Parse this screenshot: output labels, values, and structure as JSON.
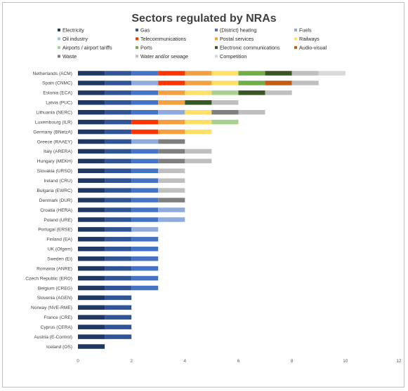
{
  "chart_data": {
    "type": "bar",
    "orientation": "horizontal",
    "stacked": true,
    "title": "Sectors regulated by NRAs",
    "xlabel": "",
    "ylabel": "",
    "xlim": [
      0,
      12
    ],
    "x_ticks": [
      "0",
      "2",
      "4",
      "6",
      "8",
      "10",
      "12"
    ],
    "grid": false,
    "legend_position": "top",
    "categories": [
      "Netherlands (ACM)",
      "Spain (CNMC)",
      "Estonia (ECA)",
      "Latvia (PUC)",
      "Lithuania (NERC)",
      "Luxembourg (ILR)",
      "Germany (BNetzA)",
      "Greece (RAAEY)",
      "Italy (ARERA)",
      "Hungary (MEKH)",
      "Slovakia (URSO)",
      "Ireland (CRU)",
      "Bulgaria (EWRC)",
      "Denmark (DUR)",
      "Croatia (HERA)",
      "Poland (URE)",
      "Portugal (ERSE)",
      "Finland (EA)",
      "UK (Ofgem)",
      "Sweden (Ei)",
      "Romania (ANRE)",
      "Czech Republic (ERO)",
      "Belgium (CREG)",
      "Slovenia (AGEN)",
      "Norway (NVE-RME)",
      "France (CRE)",
      "Cyprus (CERA)",
      "Austria (E-Control)",
      "Iceland (OS)"
    ],
    "series": [
      {
        "name": "Electricity",
        "color": "#203864",
        "values": [
          1,
          1,
          1,
          1,
          1,
          1,
          1,
          1,
          1,
          1,
          1,
          1,
          1,
          1,
          1,
          1,
          1,
          1,
          1,
          1,
          1,
          1,
          1,
          1,
          1,
          1,
          1,
          1,
          1
        ]
      },
      {
        "name": "Gas",
        "color": "#2f5597",
        "values": [
          1,
          1,
          1,
          1,
          1,
          1,
          1,
          1,
          1,
          1,
          1,
          1,
          1,
          1,
          1,
          1,
          1,
          1,
          1,
          1,
          1,
          1,
          1,
          1,
          1,
          1,
          1,
          1,
          0
        ]
      },
      {
        "name": "(District) heating",
        "color": "#4472c4",
        "values": [
          1,
          0,
          1,
          1,
          1,
          0,
          0,
          0,
          1,
          1,
          1,
          1,
          1,
          1,
          1,
          1,
          0,
          1,
          1,
          1,
          1,
          1,
          1,
          0,
          0,
          0,
          0,
          0,
          0
        ]
      },
      {
        "name": "Fuels",
        "color": "#8faadc",
        "values": [
          0,
          1,
          0,
          0,
          1,
          0,
          0,
          1,
          0,
          0,
          0,
          0,
          0,
          0,
          1,
          1,
          1,
          0,
          0,
          0,
          0,
          0,
          0,
          0,
          0,
          0,
          0,
          0,
          0
        ]
      },
      {
        "name": "Oil industry",
        "color": "#9dc3e6",
        "values": [
          0,
          0,
          0,
          0,
          0,
          0,
          0,
          0,
          0,
          0,
          0,
          0,
          0,
          0,
          0,
          0,
          0,
          0,
          0,
          0,
          0,
          0,
          0,
          0,
          0,
          0,
          0,
          0,
          0
        ]
      },
      {
        "name": "Telecommunications",
        "color": "#ff3300",
        "values": [
          1,
          1,
          0,
          0,
          0,
          1,
          1,
          0,
          0,
          0,
          0,
          0,
          0,
          0,
          0,
          0,
          0,
          0,
          0,
          0,
          0,
          0,
          0,
          0,
          0,
          0,
          0,
          0,
          0
        ]
      },
      {
        "name": "Postal services",
        "color": "#f4a040",
        "values": [
          1,
          1,
          1,
          1,
          0,
          1,
          1,
          0,
          0,
          0,
          0,
          0,
          0,
          0,
          0,
          0,
          0,
          0,
          0,
          0,
          0,
          0,
          0,
          0,
          0,
          0,
          0,
          0,
          0
        ]
      },
      {
        "name": "Railways",
        "color": "#ffe066",
        "values": [
          1,
          1,
          1,
          0,
          1,
          1,
          1,
          0,
          0,
          0,
          0,
          0,
          0,
          0,
          0,
          0,
          0,
          0,
          0,
          0,
          0,
          0,
          0,
          0,
          0,
          0,
          0,
          0,
          0
        ]
      },
      {
        "name": "Airports / airport tariffs",
        "color": "#a9d18e",
        "values": [
          0,
          0,
          1,
          0,
          0,
          1,
          0,
          0,
          0,
          0,
          0,
          0,
          0,
          0,
          0,
          0,
          0,
          0,
          0,
          0,
          0,
          0,
          0,
          0,
          0,
          0,
          0,
          0,
          0
        ]
      },
      {
        "name": "Ports",
        "color": "#70ad47",
        "values": [
          1,
          1,
          0,
          0,
          0,
          0,
          0,
          0,
          0,
          0,
          0,
          0,
          0,
          0,
          0,
          0,
          0,
          0,
          0,
          0,
          0,
          0,
          0,
          0,
          0,
          0,
          0,
          0,
          0
        ]
      },
      {
        "name": "Electronic communications",
        "color": "#375623",
        "values": [
          1,
          0,
          1,
          1,
          0,
          0,
          0,
          0,
          0,
          0,
          0,
          0,
          0,
          0,
          0,
          0,
          0,
          0,
          0,
          0,
          0,
          0,
          0,
          0,
          0,
          0,
          0,
          0,
          0
        ]
      },
      {
        "name": "Audio-visual",
        "color": "#c55a11",
        "values": [
          0,
          1,
          0,
          0,
          0,
          0,
          0,
          0,
          0,
          0,
          0,
          0,
          0,
          0,
          0,
          0,
          0,
          0,
          0,
          0,
          0,
          0,
          0,
          0,
          0,
          0,
          0,
          0,
          0
        ]
      },
      {
        "name": "Waste",
        "color": "#7f7f7f",
        "values": [
          0,
          0,
          0,
          0,
          1,
          0,
          0,
          1,
          1,
          1,
          0,
          0,
          0,
          1,
          0,
          0,
          0,
          0,
          0,
          0,
          0,
          0,
          0,
          0,
          0,
          0,
          0,
          0,
          0
        ]
      },
      {
        "name": "Water and/or sewage",
        "color": "#bfbfbf",
        "values": [
          1,
          1,
          1,
          1,
          1,
          0,
          0,
          0,
          1,
          1,
          1,
          1,
          1,
          0,
          0,
          0,
          0,
          0,
          0,
          0,
          0,
          0,
          0,
          0,
          0,
          0,
          0,
          0,
          0
        ]
      },
      {
        "name": "Competition",
        "color": "#d9d9d9",
        "values": [
          1,
          0,
          0,
          0,
          0,
          0,
          0,
          0,
          0,
          0,
          0,
          0,
          0,
          0,
          0,
          0,
          0,
          0,
          0,
          0,
          0,
          0,
          0,
          0,
          0,
          0,
          0,
          0,
          0
        ]
      }
    ]
  }
}
